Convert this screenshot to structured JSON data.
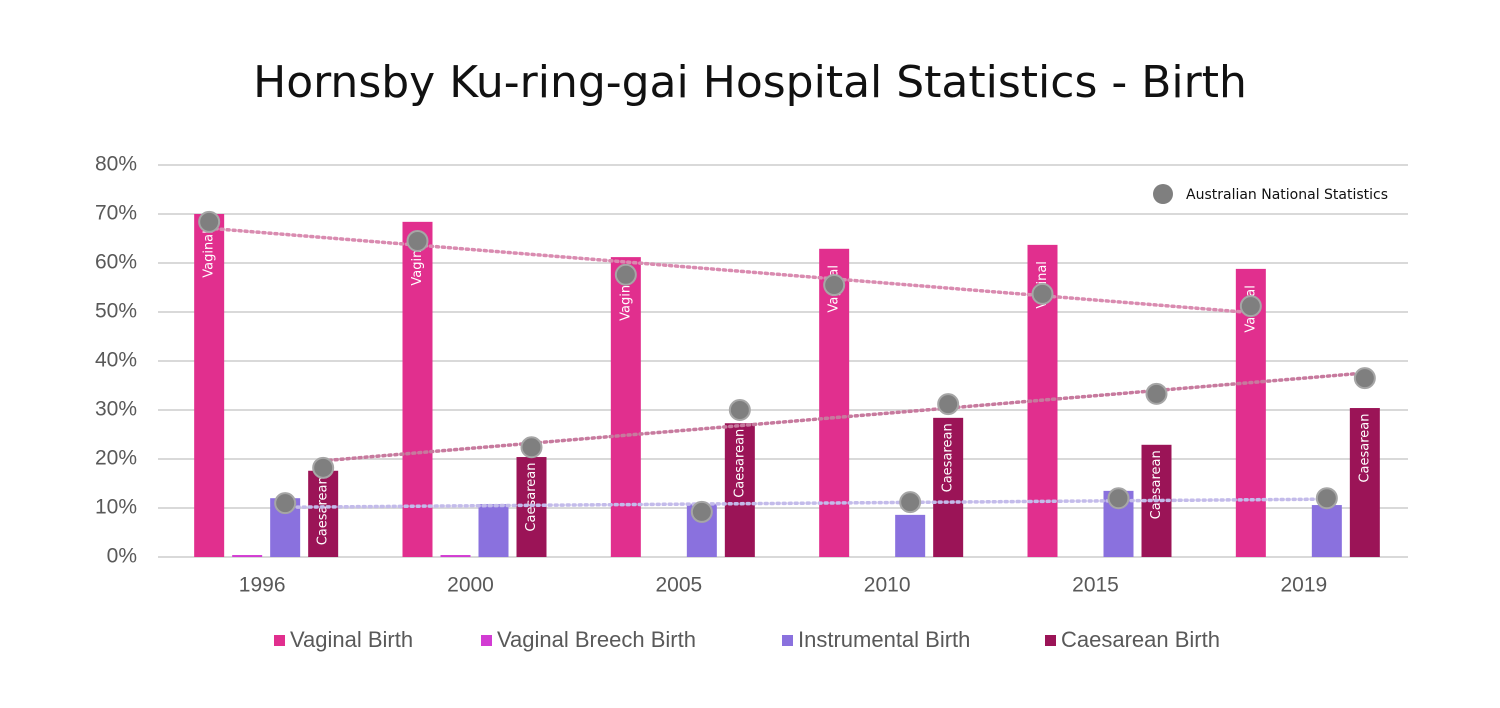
{
  "chart_data": {
    "type": "bar",
    "title": "Hornsby Ku-ring-gai Hospital Statistics - Birth",
    "categories": [
      "1996",
      "2000",
      "2005",
      "2010",
      "2015",
      "2019"
    ],
    "series": [
      {
        "name": "Vaginal Birth",
        "color": "#e12f8e",
        "values": [
          70,
          68.4,
          61.2,
          62.9,
          63.7,
          58.8
        ],
        "bar_label": "Vaginal",
        "national": [
          68.4,
          64.5,
          57.6,
          55.5,
          53.7,
          51.2
        ],
        "trend_color": "#d98bb0"
      },
      {
        "name": "Vaginal Breech Birth",
        "color": "#d23cd3",
        "values": [
          0.4,
          0.4,
          0,
          0,
          0,
          0
        ]
      },
      {
        "name": "Instrumental Birth",
        "color": "#8a71de",
        "values": [
          12,
          10.8,
          10.8,
          8.6,
          13.5,
          10.6
        ],
        "national": [
          11,
          null,
          9.2,
          11.2,
          12,
          12
        ],
        "trend_color": "#c3bbea"
      },
      {
        "name": "Caesarean Birth",
        "color": "#9b1457",
        "values": [
          17.6,
          20.4,
          27.3,
          28.4,
          22.9,
          30.4
        ],
        "bar_label": "Caesarean",
        "national": [
          18.2,
          22.4,
          30,
          31.2,
          33.3,
          36.5
        ],
        "trend_color": "#c77a9e"
      }
    ],
    "national_name": "Australian National Statistics",
    "national_color": "#7f7f7f",
    "ylim": [
      0,
      80
    ],
    "yticks": [
      {
        "value": 0,
        "label": "0%"
      },
      {
        "value": 10,
        "label": "10%"
      },
      {
        "value": 20,
        "label": "20%"
      },
      {
        "value": 30,
        "label": "30%"
      },
      {
        "value": 40,
        "label": "40%"
      },
      {
        "value": 50,
        "label": "50%"
      },
      {
        "value": 60,
        "label": "60%"
      },
      {
        "value": 70,
        "label": "70%"
      },
      {
        "value": 80,
        "label": "80%"
      }
    ],
    "grid": true,
    "trendline": true
  }
}
